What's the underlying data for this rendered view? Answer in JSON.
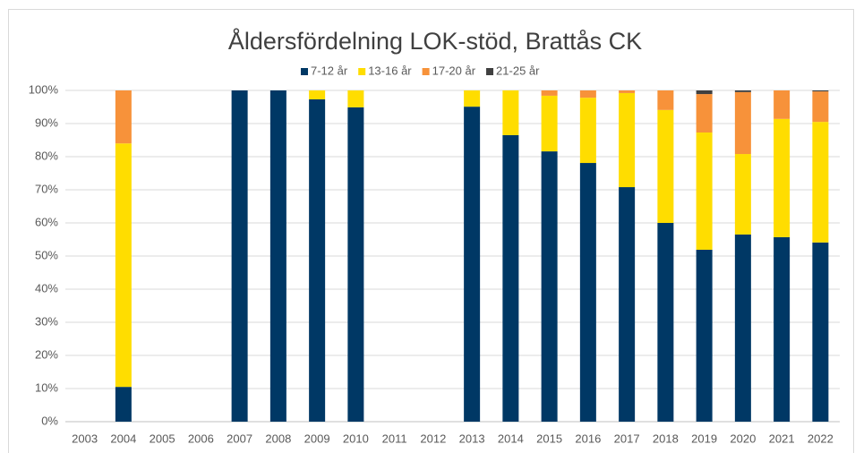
{
  "chart_data": {
    "type": "stacked_bar",
    "title": "Åldersfördelning LOK-stöd, Brattås CK",
    "categories": [
      "2003",
      "2004",
      "2005",
      "2006",
      "2007",
      "2008",
      "2009",
      "2010",
      "2011",
      "2012",
      "2013",
      "2014",
      "2015",
      "2016",
      "2017",
      "2018",
      "2019",
      "2020",
      "2021",
      "2022"
    ],
    "series": [
      {
        "name": "7-12 år",
        "color": "#003865",
        "values": [
          0,
          10.5,
          0,
          0,
          100,
          100,
          97.3,
          94.9,
          0,
          0,
          95.1,
          86.5,
          81.6,
          78.1,
          70.8,
          60,
          51.9,
          56.5,
          55.7,
          54.1
        ]
      },
      {
        "name": "13-16 år",
        "color": "#ffdd00",
        "values": [
          0,
          73.5,
          0,
          0,
          0,
          0,
          2.7,
          5.1,
          0,
          0,
          4.9,
          13.5,
          16.8,
          19.7,
          28.4,
          34.1,
          35.4,
          24.3,
          35.7,
          36.4
        ]
      },
      {
        "name": "17-20 år",
        "color": "#f7923a",
        "values": [
          0,
          16,
          0,
          0,
          0,
          0,
          0,
          0,
          0,
          0,
          0,
          0,
          1.6,
          2.2,
          0.8,
          5.9,
          11.6,
          18.7,
          8.6,
          9.2
        ]
      },
      {
        "name": "21-25 år",
        "color": "#404040",
        "values": [
          0,
          0,
          0,
          0,
          0,
          0,
          0,
          0,
          0,
          0,
          0,
          0,
          0,
          0,
          0,
          0,
          1.1,
          0.5,
          0,
          0.3
        ]
      }
    ],
    "ylim": [
      0,
      100
    ],
    "yticks": [
      {
        "value": 0,
        "label": "0%"
      },
      {
        "value": 10,
        "label": "10%"
      },
      {
        "value": 20,
        "label": "20%"
      },
      {
        "value": 30,
        "label": "30%"
      },
      {
        "value": 40,
        "label": "40%"
      },
      {
        "value": 50,
        "label": "50%"
      },
      {
        "value": 60,
        "label": "60%"
      },
      {
        "value": 70,
        "label": "70%"
      },
      {
        "value": 80,
        "label": "80%"
      },
      {
        "value": 90,
        "label": "90%"
      },
      {
        "value": 100,
        "label": "100%"
      }
    ],
    "grid": true,
    "legend": "top"
  }
}
